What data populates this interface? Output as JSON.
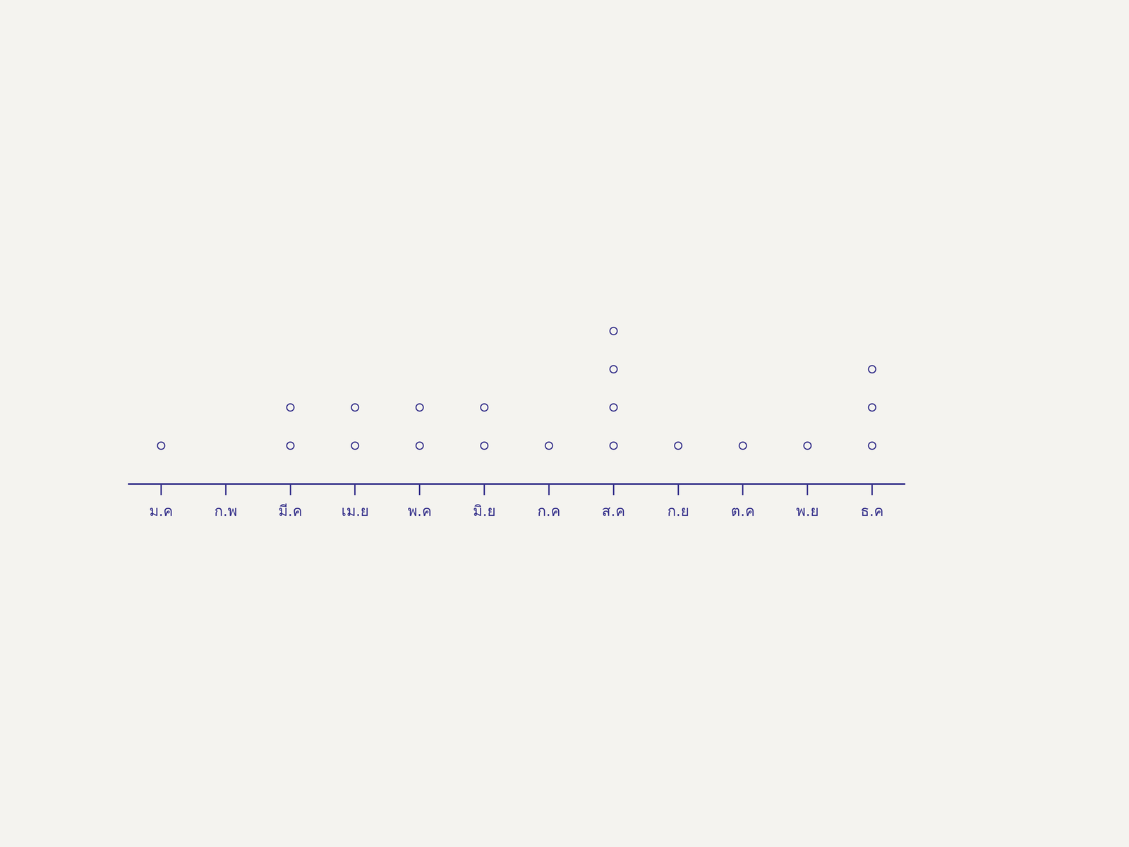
{
  "chart_data": {
    "type": "dot",
    "categories": [
      "ม.ค",
      "ก.พ",
      "มี.ค",
      "เม.ย",
      "พ.ค",
      "มิ.ย",
      "ก.ค",
      "ส.ค",
      "ก.ย",
      "ต.ค",
      "พ.ย",
      "ธ.ค"
    ],
    "values": [
      1,
      0,
      2,
      2,
      2,
      2,
      1,
      4,
      1,
      1,
      1,
      3
    ],
    "color": "#35308a",
    "marker": "circle",
    "grid": false,
    "tick_labels": "x"
  }
}
